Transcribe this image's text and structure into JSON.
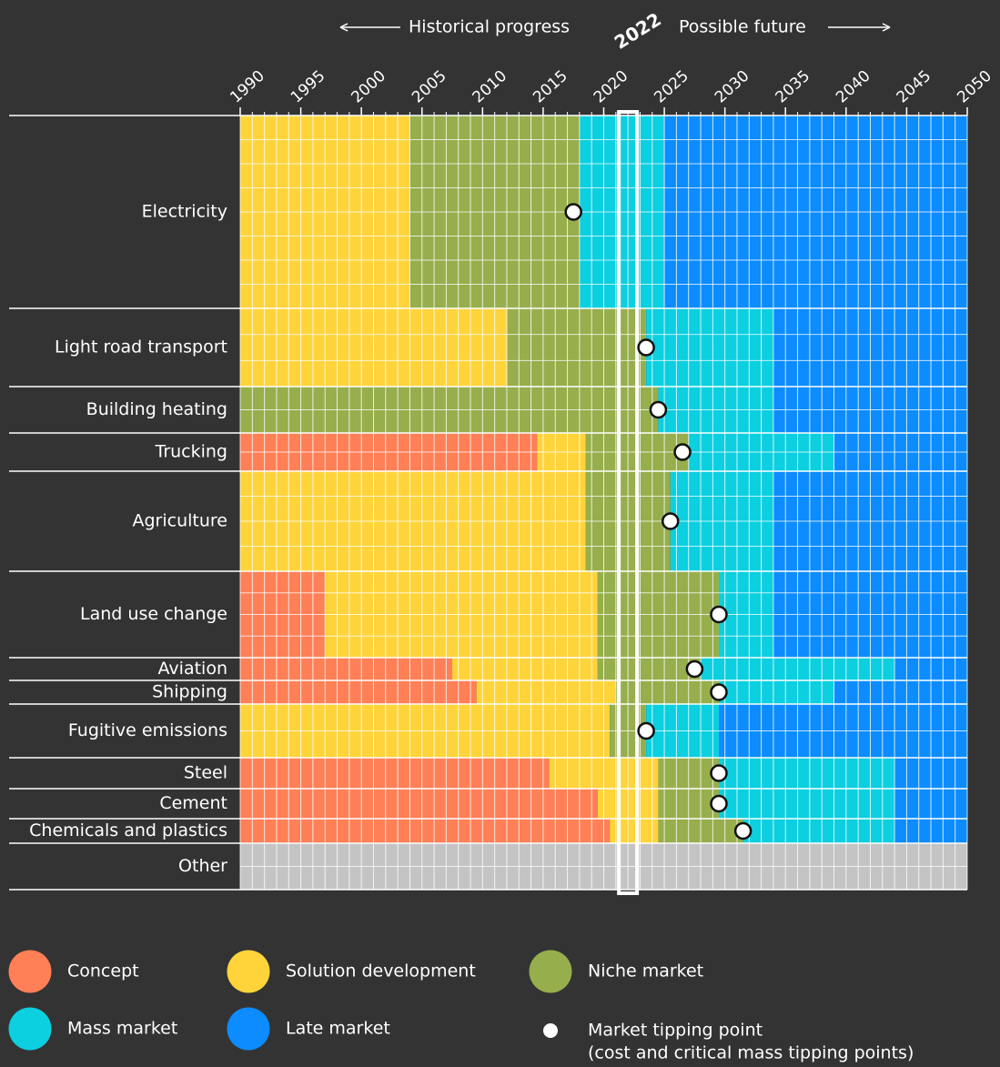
{
  "chart_data": {
    "type": "timeline",
    "historical_label": "Historical progress",
    "future_label": "Possible future",
    "highlight_year": 2022,
    "xlim": [
      1990,
      2050
    ],
    "xticks": [
      1990,
      1995,
      2000,
      2005,
      2010,
      2015,
      2020,
      2025,
      2030,
      2035,
      2040,
      2045,
      2050
    ],
    "stages": [
      {
        "name": "Concept",
        "color": "#ff7f56"
      },
      {
        "name": "Solution development",
        "color": "#ffd43b"
      },
      {
        "name": "Niche market",
        "color": "#97ae4c"
      },
      {
        "name": "Mass market",
        "color": "#0ccfe0"
      },
      {
        "name": "Late market",
        "color": "#0c8cff"
      }
    ],
    "tipping_label": "Market tipping point",
    "tipping_note": "(cost and critical mass tipping points)",
    "sectors": [
      {
        "name": "Electricity",
        "stages": [
          null,
          [
            1990,
            2004
          ],
          [
            2004,
            2018
          ],
          [
            2018,
            2025
          ],
          [
            2025,
            2050
          ]
        ],
        "tipping": 2017.5
      },
      {
        "name": "Light road transport",
        "stages": [
          null,
          [
            1990,
            2012
          ],
          [
            2012,
            2023.5
          ],
          [
            2023.5,
            2034
          ],
          [
            2034,
            2050
          ]
        ],
        "tipping": 2023.5
      },
      {
        "name": "Building heating",
        "stages": [
          null,
          null,
          [
            1990,
            2024.5
          ],
          [
            2024.5,
            2034
          ],
          [
            2034,
            2050
          ]
        ],
        "tipping": 2024.5
      },
      {
        "name": "Trucking",
        "stages": [
          [
            1990,
            2014.5
          ],
          [
            2014.5,
            2018.5
          ],
          [
            2018.5,
            2027
          ],
          [
            2027,
            2039
          ],
          [
            2039,
            2050
          ]
        ],
        "tipping": 2026.5
      },
      {
        "name": "Agriculture",
        "stages": [
          null,
          [
            1990,
            2018.5
          ],
          [
            2018.5,
            2025.5
          ],
          [
            2025.5,
            2034
          ],
          [
            2034,
            2050
          ]
        ],
        "tipping": 2025.5
      },
      {
        "name": "Land use change",
        "stages": [
          [
            1990,
            1997
          ],
          [
            1997,
            2019.5
          ],
          [
            2019.5,
            2029.5
          ],
          [
            2029.5,
            2034
          ],
          [
            2034,
            2050
          ]
        ],
        "tipping": 2029.5
      },
      {
        "name": "Aviation",
        "stages": [
          [
            1990,
            2007.5
          ],
          [
            2007.5,
            2019.5
          ],
          [
            2019.5,
            2028
          ],
          [
            2028,
            2044
          ],
          [
            2044,
            2050
          ]
        ],
        "tipping": 2027.5
      },
      {
        "name": "Shipping",
        "stages": [
          [
            1990,
            2009.5
          ],
          [
            2009.5,
            2021
          ],
          [
            2021,
            2029.5
          ],
          [
            2029.5,
            2039
          ],
          [
            2039,
            2050
          ]
        ],
        "tipping": 2029.5
      },
      {
        "name": "Fugitive emissions",
        "stages": [
          null,
          [
            1990,
            2020.5
          ],
          [
            2020.5,
            2023.5
          ],
          [
            2023.5,
            2029.5
          ],
          [
            2029.5,
            2050
          ]
        ],
        "tipping": 2023.5
      },
      {
        "name": "Steel",
        "stages": [
          [
            1990,
            2015.5
          ],
          [
            2015.5,
            2024.5
          ],
          [
            2024.5,
            2029.5
          ],
          [
            2029.5,
            2044
          ],
          [
            2044,
            2050
          ]
        ],
        "tipping": 2029.5
      },
      {
        "name": "Cement",
        "stages": [
          [
            1990,
            2019.5
          ],
          [
            2019.5,
            2024.5
          ],
          [
            2024.5,
            2029.5
          ],
          [
            2029.5,
            2044
          ],
          [
            2044,
            2050
          ]
        ],
        "tipping": 2029.5
      },
      {
        "name": "Chemicals and plastics",
        "stages": [
          [
            1990,
            2020.5
          ],
          [
            2020.5,
            2024.5
          ],
          [
            2024.5,
            2031.5
          ],
          [
            2031.5,
            2044
          ],
          [
            2044,
            2050
          ]
        ],
        "tipping": 2031.5
      }
    ],
    "other": {
      "name": "Other",
      "color": "#c4c4c4"
    }
  }
}
